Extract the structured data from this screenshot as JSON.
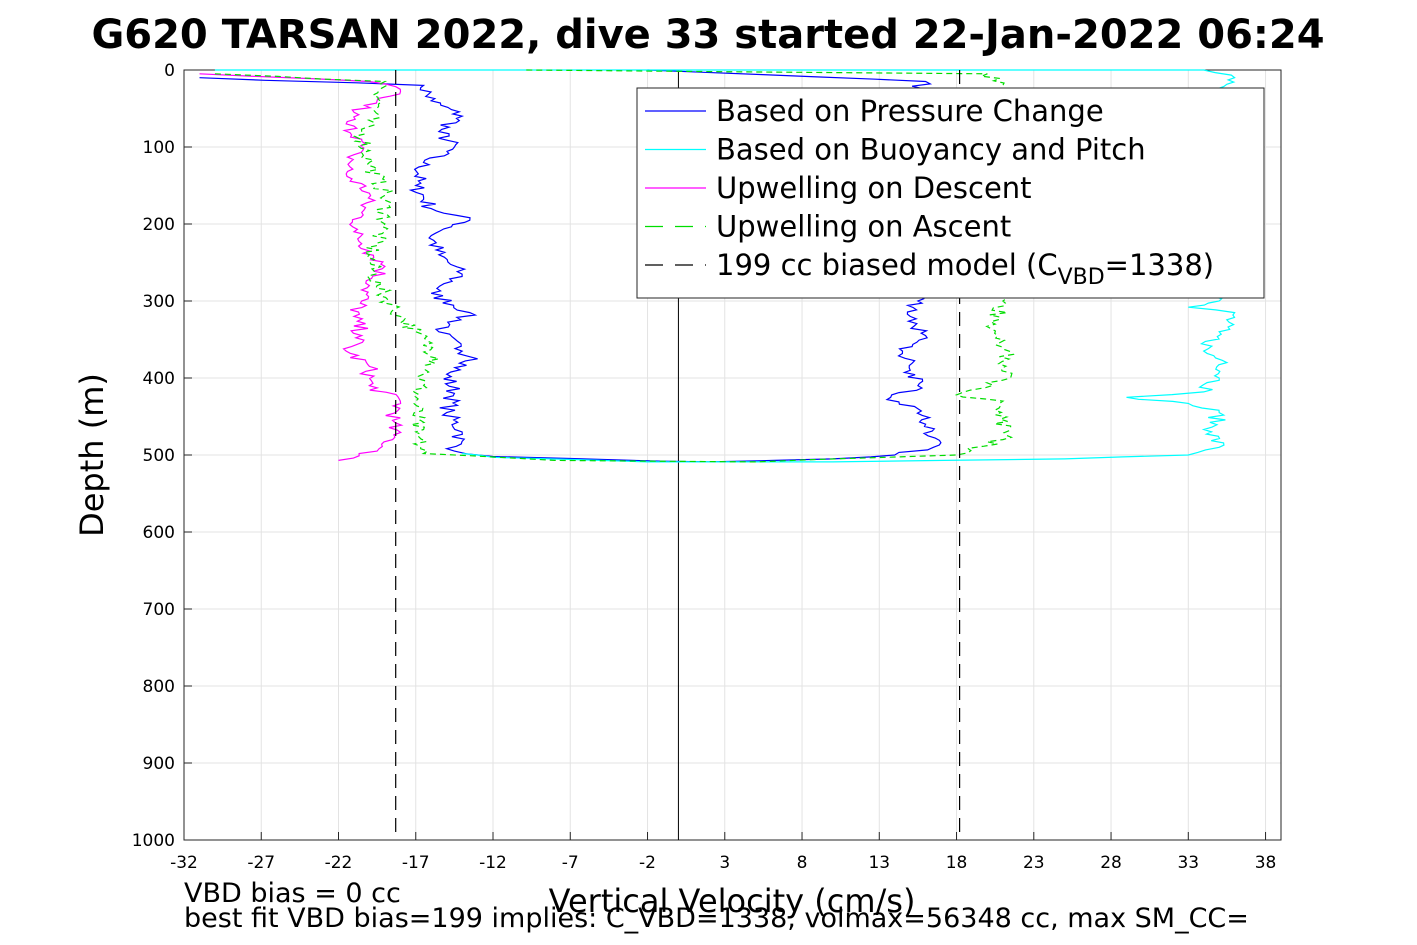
{
  "chart_data": {
    "type": "line",
    "title": "G620 TARSAN 2022, dive 33 started 22-Jan-2022 06:24",
    "xlabel": "Vertical Velocity (cm/s)",
    "ylabel": "Depth (m)",
    "xlim": [
      -32,
      39
    ],
    "ylim": [
      0,
      1000
    ],
    "y_reversed": true,
    "grid": true,
    "legend_position": "top-right",
    "x_ticks": [
      "-32",
      "-27",
      "-22",
      "-17",
      "-12",
      "-7",
      "-2",
      "3",
      "8",
      "13",
      "18",
      "23",
      "28",
      "33",
      "38"
    ],
    "y_ticks": [
      "0",
      "100",
      "200",
      "300",
      "400",
      "500",
      "600",
      "700",
      "800",
      "900",
      "1000"
    ],
    "series": [
      {
        "name": "Based on Pressure Change",
        "color": "#0000ff",
        "style": "solid",
        "points": [
          [
            -31,
            10
          ],
          [
            -16.5,
            20
          ],
          [
            -16,
            40
          ],
          [
            -14,
            60
          ],
          [
            -15.5,
            80
          ],
          [
            -14.5,
            100
          ],
          [
            -16.5,
            120
          ],
          [
            -17,
            150
          ],
          [
            -16,
            180
          ],
          [
            -13.5,
            195
          ],
          [
            -16,
            215
          ],
          [
            -15.5,
            240
          ],
          [
            -14,
            265
          ],
          [
            -16,
            290
          ],
          [
            -13.5,
            315
          ],
          [
            -15.5,
            340
          ],
          [
            -14,
            365
          ],
          [
            -13,
            375
          ],
          [
            -15,
            395
          ],
          [
            -14.5,
            420
          ],
          [
            -15,
            445
          ],
          [
            -14,
            470
          ],
          [
            -14.5,
            495
          ],
          [
            -12,
            502
          ],
          [
            -3,
            507
          ],
          [
            2,
            509
          ],
          [
            10,
            505
          ],
          [
            14,
            500
          ],
          [
            16.5,
            490
          ],
          [
            16,
            460
          ],
          [
            15.5,
            440
          ],
          [
            13.5,
            428
          ],
          [
            15.5,
            410
          ],
          [
            15,
            390
          ],
          [
            14.5,
            365
          ],
          [
            16,
            345
          ],
          [
            15,
            320
          ],
          [
            15.5,
            300
          ],
          [
            15,
            30
          ],
          [
            16,
            15
          ],
          [
            -2,
            0
          ]
        ]
      },
      {
        "name": "Based on Buoyancy and Pitch",
        "color": "#00ffff",
        "style": "solid",
        "points": [
          [
            -30,
            0
          ],
          [
            0,
            0
          ],
          [
            34,
            0
          ],
          [
            36,
            10
          ],
          [
            35,
            30
          ],
          [
            35,
            300
          ],
          [
            33,
            308
          ],
          [
            36,
            315
          ],
          [
            35,
            340
          ],
          [
            34,
            365
          ],
          [
            35.5,
            380
          ],
          [
            35,
            400
          ],
          [
            34,
            418
          ],
          [
            29,
            425
          ],
          [
            33,
            433
          ],
          [
            35,
            445
          ],
          [
            34.5,
            470
          ],
          [
            35,
            490
          ],
          [
            33,
            500
          ],
          [
            25,
            505
          ],
          [
            10,
            509
          ],
          [
            -2,
            509
          ],
          [
            -12,
            503
          ],
          [
            -14,
            498
          ]
        ]
      },
      {
        "name": "Upwelling on Descent",
        "color": "#ff00ff",
        "style": "solid",
        "points": [
          [
            -31,
            5
          ],
          [
            -20,
            15
          ],
          [
            -18,
            25
          ],
          [
            -19.5,
            40
          ],
          [
            -21,
            55
          ],
          [
            -21.5,
            70
          ],
          [
            -20.5,
            90
          ],
          [
            -21,
            110
          ],
          [
            -21.5,
            135
          ],
          [
            -20,
            160
          ],
          [
            -20.5,
            185
          ],
          [
            -21,
            210
          ],
          [
            -20,
            235
          ],
          [
            -19,
            255
          ],
          [
            -20,
            280
          ],
          [
            -20.5,
            300
          ],
          [
            -21,
            320
          ],
          [
            -20.5,
            345
          ],
          [
            -21.5,
            365
          ],
          [
            -20,
            385
          ],
          [
            -20,
            410
          ],
          [
            -18,
            430
          ],
          [
            -18.5,
            455
          ],
          [
            -18.5,
            480
          ],
          [
            -19.5,
            495
          ],
          [
            -22,
            507
          ]
        ]
      },
      {
        "name": "Upwelling on Ascent",
        "color": "#00dd00",
        "style": "dashed",
        "points": [
          [
            -30,
            5
          ],
          [
            -19,
            15
          ],
          [
            -19.5,
            50
          ],
          [
            -20.5,
            80
          ],
          [
            -20,
            120
          ],
          [
            -19,
            160
          ],
          [
            -19,
            200
          ],
          [
            -20,
            240
          ],
          [
            -19.5,
            280
          ],
          [
            -18,
            320
          ],
          [
            -17,
            340
          ],
          [
            -15.5,
            375
          ],
          [
            -16.5,
            395
          ],
          [
            -17,
            430
          ],
          [
            -17,
            470
          ],
          [
            -16.5,
            498
          ],
          [
            -8,
            507
          ],
          [
            5,
            509
          ],
          [
            18,
            500
          ],
          [
            21,
            480
          ],
          [
            21,
            430
          ],
          [
            18,
            422
          ],
          [
            21.5,
            400
          ],
          [
            21,
            360
          ],
          [
            20.5,
            330
          ],
          [
            21,
            300
          ],
          [
            21,
            20
          ],
          [
            20,
            5
          ],
          [
            -10,
            0
          ]
        ]
      },
      {
        "name": "199 cc biased model",
        "color": "#000000",
        "style": "dashed",
        "points": [
          [
            -18.3,
            0
          ],
          [
            -18.3,
            1000
          ],
          null,
          [
            18.2,
            0
          ],
          [
            18.2,
            1000
          ]
        ]
      }
    ],
    "zero_line": 0
  },
  "legend": {
    "entries": [
      {
        "label": "Based on Pressure Change"
      },
      {
        "label": "Based on Buoyancy and Pitch"
      },
      {
        "label": "Upwelling on Descent"
      },
      {
        "label": "Upwelling on Ascent"
      },
      {
        "label_main": "199 cc biased model (C",
        "label_sub": "VBD",
        "label_tail": "=1338)"
      }
    ]
  },
  "footer": {
    "line1": "VBD bias = 0 cc",
    "line2": "best fit VBD bias=199 implies: C_VBD=1338, volmax=56348 cc, max SM_CC="
  }
}
